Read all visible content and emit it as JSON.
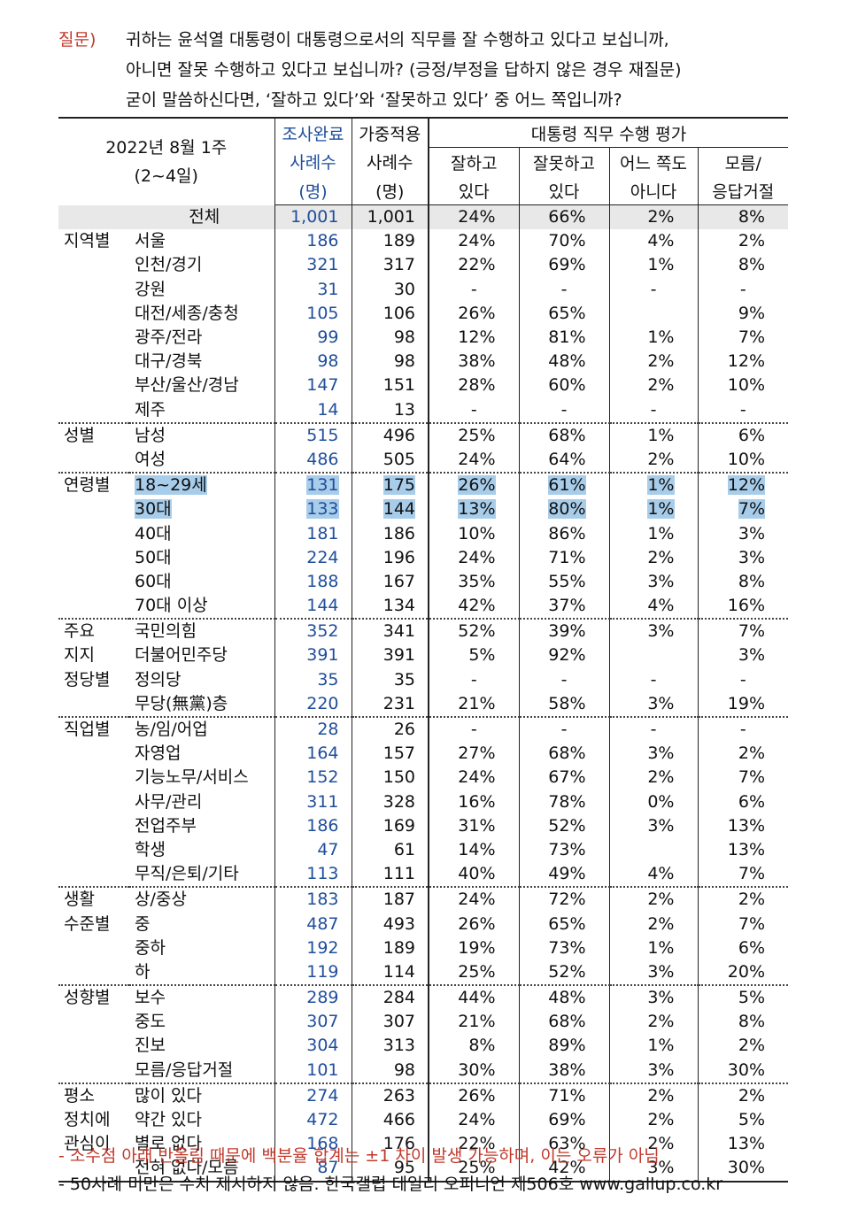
{
  "question": {
    "label": "질문)",
    "lines": [
      "귀하는 윤석열 대통령이 대통령으로서의 직무를 잘 수행하고 있다고 보십니까,",
      "아니면 잘못 수행하고 있다고 보십니까? (긍정/부정을 답하지 않은 경우 재질문)",
      "굳이 말씀하신다면, ‘잘하고 있다’와 ‘잘못하고 있다’ 중 어느 쪽입니까?"
    ]
  },
  "header": {
    "period_line1": "2022년 8월 1주",
    "period_line2": "(2~4일)",
    "col_completed": [
      "조사완료",
      "사례수",
      "(명)"
    ],
    "col_weighted": [
      "가중적용",
      "사례수",
      "(명)"
    ],
    "eval_title": "대통령 직무 수행 평가",
    "eval_cols": [
      [
        "잘하고",
        "있다"
      ],
      [
        "잘못하고",
        "있다"
      ],
      [
        "어느 쪽도",
        "아니다"
      ],
      [
        "모름/",
        "응답거절"
      ]
    ]
  },
  "rows": [
    {
      "group": "",
      "sub": "전체",
      "n": "1,001",
      "w": "1,001",
      "v": [
        "24%",
        "66%",
        "2%",
        "8%"
      ],
      "total": true
    },
    {
      "group": "지역별",
      "sub": "서울",
      "n": "186",
      "w": "189",
      "v": [
        "24%",
        "70%",
        "4%",
        "2%"
      ]
    },
    {
      "group": "",
      "sub": "인천/경기",
      "n": "321",
      "w": "317",
      "v": [
        "22%",
        "69%",
        "1%",
        "8%"
      ]
    },
    {
      "group": "",
      "sub": "강원",
      "n": "31",
      "w": "30",
      "v": [
        "-",
        "-",
        "-",
        "-"
      ]
    },
    {
      "group": "",
      "sub": "대전/세종/충청",
      "n": "105",
      "w": "106",
      "v": [
        "26%",
        "65%",
        "",
        "9%"
      ]
    },
    {
      "group": "",
      "sub": "광주/전라",
      "n": "99",
      "w": "98",
      "v": [
        "12%",
        "81%",
        "1%",
        "7%"
      ]
    },
    {
      "group": "",
      "sub": "대구/경북",
      "n": "98",
      "w": "98",
      "v": [
        "38%",
        "48%",
        "2%",
        "12%"
      ]
    },
    {
      "group": "",
      "sub": "부산/울산/경남",
      "n": "147",
      "w": "151",
      "v": [
        "28%",
        "60%",
        "2%",
        "10%"
      ]
    },
    {
      "group": "",
      "sub": "제주",
      "n": "14",
      "w": "13",
      "v": [
        "-",
        "-",
        "-",
        "-"
      ]
    },
    {
      "group": "성별",
      "sub": "남성",
      "n": "515",
      "w": "496",
      "v": [
        "25%",
        "68%",
        "1%",
        "6%"
      ],
      "sep": true
    },
    {
      "group": "",
      "sub": "여성",
      "n": "486",
      "w": "505",
      "v": [
        "24%",
        "64%",
        "2%",
        "10%"
      ]
    },
    {
      "group": "연령별",
      "sub": "18~29세",
      "n": "131",
      "w": "175",
      "v": [
        "26%",
        "61%",
        "1%",
        "12%"
      ],
      "sep": true,
      "hl": true
    },
    {
      "group": "",
      "sub": "30대",
      "n": "133",
      "w": "144",
      "v": [
        "13%",
        "80%",
        "1%",
        "7%"
      ],
      "hl": true
    },
    {
      "group": "",
      "sub": "40대",
      "n": "181",
      "w": "186",
      "v": [
        "10%",
        "86%",
        "1%",
        "3%"
      ]
    },
    {
      "group": "",
      "sub": "50대",
      "n": "224",
      "w": "196",
      "v": [
        "24%",
        "71%",
        "2%",
        "3%"
      ]
    },
    {
      "group": "",
      "sub": "60대",
      "n": "188",
      "w": "167",
      "v": [
        "35%",
        "55%",
        "3%",
        "8%"
      ]
    },
    {
      "group": "",
      "sub": "70대 이상",
      "n": "144",
      "w": "134",
      "v": [
        "42%",
        "37%",
        "4%",
        "16%"
      ]
    },
    {
      "group": "주요",
      "sub": "국민의힘",
      "n": "352",
      "w": "341",
      "v": [
        "52%",
        "39%",
        "3%",
        "7%"
      ],
      "sep": true
    },
    {
      "group": "지지",
      "sub": "더불어민주당",
      "n": "391",
      "w": "391",
      "v": [
        "5%",
        "92%",
        "",
        "3%"
      ]
    },
    {
      "group": "정당별",
      "sub": "정의당",
      "n": "35",
      "w": "35",
      "v": [
        "-",
        "-",
        "-",
        "-"
      ]
    },
    {
      "group": "",
      "sub": "무당(無黨)층",
      "n": "220",
      "w": "231",
      "v": [
        "21%",
        "58%",
        "3%",
        "19%"
      ]
    },
    {
      "group": "직업별",
      "sub": "농/임/어업",
      "n": "28",
      "w": "26",
      "v": [
        "-",
        "-",
        "-",
        "-"
      ],
      "sep": true
    },
    {
      "group": "",
      "sub": "자영업",
      "n": "164",
      "w": "157",
      "v": [
        "27%",
        "68%",
        "3%",
        "2%"
      ]
    },
    {
      "group": "",
      "sub": "기능노무/서비스",
      "n": "152",
      "w": "150",
      "v": [
        "24%",
        "67%",
        "2%",
        "7%"
      ]
    },
    {
      "group": "",
      "sub": "사무/관리",
      "n": "311",
      "w": "328",
      "v": [
        "16%",
        "78%",
        "0%",
        "6%"
      ]
    },
    {
      "group": "",
      "sub": "전업주부",
      "n": "186",
      "w": "169",
      "v": [
        "31%",
        "52%",
        "3%",
        "13%"
      ]
    },
    {
      "group": "",
      "sub": "학생",
      "n": "47",
      "w": "61",
      "v": [
        "14%",
        "73%",
        "",
        "13%"
      ]
    },
    {
      "group": "",
      "sub": "무직/은퇴/기타",
      "n": "113",
      "w": "111",
      "v": [
        "40%",
        "49%",
        "4%",
        "7%"
      ]
    },
    {
      "group": "생활",
      "sub": "상/중상",
      "n": "183",
      "w": "187",
      "v": [
        "24%",
        "72%",
        "2%",
        "2%"
      ],
      "sep": true
    },
    {
      "group": "수준별",
      "sub": "중",
      "n": "487",
      "w": "493",
      "v": [
        "26%",
        "65%",
        "2%",
        "7%"
      ]
    },
    {
      "group": "",
      "sub": "중하",
      "n": "192",
      "w": "189",
      "v": [
        "19%",
        "73%",
        "1%",
        "6%"
      ]
    },
    {
      "group": "",
      "sub": "하",
      "n": "119",
      "w": "114",
      "v": [
        "25%",
        "52%",
        "3%",
        "20%"
      ]
    },
    {
      "group": "성향별",
      "sub": "보수",
      "n": "289",
      "w": "284",
      "v": [
        "44%",
        "48%",
        "3%",
        "5%"
      ],
      "sep": true
    },
    {
      "group": "",
      "sub": "중도",
      "n": "307",
      "w": "307",
      "v": [
        "21%",
        "68%",
        "2%",
        "8%"
      ]
    },
    {
      "group": "",
      "sub": "진보",
      "n": "304",
      "w": "313",
      "v": [
        "8%",
        "89%",
        "1%",
        "2%"
      ]
    },
    {
      "group": "",
      "sub": "모름/응답거절",
      "n": "101",
      "w": "98",
      "v": [
        "30%",
        "38%",
        "3%",
        "30%"
      ]
    },
    {
      "group": "평소",
      "sub": "많이 있다",
      "n": "274",
      "w": "263",
      "v": [
        "26%",
        "71%",
        "2%",
        "2%"
      ],
      "sep": true
    },
    {
      "group": "정치에",
      "sub": "약간 있다",
      "n": "472",
      "w": "466",
      "v": [
        "24%",
        "69%",
        "2%",
        "5%"
      ]
    },
    {
      "group": "관심이",
      "sub": "별로 없다",
      "n": "168",
      "w": "176",
      "v": [
        "22%",
        "63%",
        "2%",
        "13%"
      ]
    },
    {
      "group": "",
      "sub": "전혀 없다/모름",
      "n": "87",
      "w": "95",
      "v": [
        "25%",
        "42%",
        "3%",
        "30%"
      ],
      "last": true
    }
  ],
  "notes": [
    "- 소수점 아래 반올림 때문에 백분율 합계는 ±1 차이 발생 가능하며, 이는 오류가 아님",
    "- 50사례 미만은 수치 제시하지 않음. 한국갤럽 데일리 오피니언 제506호 www.gallup.co.kr"
  ],
  "colors": {
    "accent_red": "#c0392b",
    "blue": "#1f4e9c",
    "highlight": "#a8cdea",
    "total_bg": "#e8e8e8"
  }
}
